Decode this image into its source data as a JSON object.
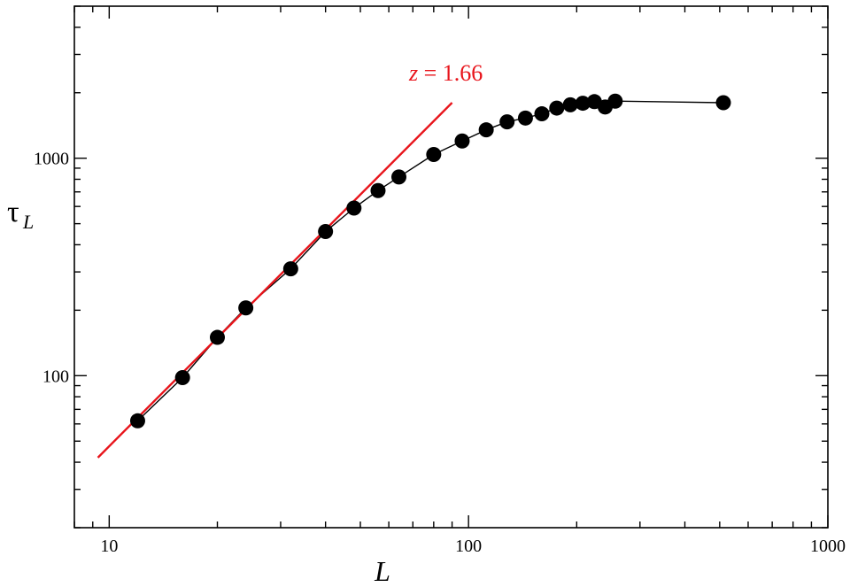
{
  "chart_data": {
    "type": "scatter",
    "x_scale": "log",
    "y_scale": "log",
    "xlim": [
      8,
      1000
    ],
    "ylim": [
      20,
      5000
    ],
    "x_ticks": [
      10,
      100,
      1000
    ],
    "x_tick_labels": [
      "10",
      "100",
      "1000"
    ],
    "y_ticks": [
      100,
      1000
    ],
    "y_tick_labels": [
      "100",
      "1000"
    ],
    "xlabel": "L",
    "ylabel_main": "τ",
    "ylabel_sub": "L",
    "grid": false,
    "series": [
      {
        "type": "line-marker",
        "color": "#000000",
        "x": [
          12,
          16,
          20,
          24,
          32,
          40,
          48,
          56,
          64,
          80,
          96,
          112,
          128,
          144,
          160,
          176,
          192,
          208,
          224,
          240,
          256,
          512
        ],
        "y": [
          62,
          98,
          150,
          205,
          310,
          460,
          590,
          710,
          820,
          1040,
          1200,
          1350,
          1470,
          1530,
          1600,
          1700,
          1760,
          1790,
          1820,
          1720,
          1830,
          1800
        ]
      },
      {
        "type": "fit-line",
        "color": "#e8141b",
        "x": [
          9.3,
          90
        ],
        "slope": 1.66,
        "y": [
          42,
          1800
        ]
      }
    ],
    "annotations": [
      {
        "var": "z",
        "text": " = 1.66",
        "color": "#e8141b"
      }
    ]
  }
}
